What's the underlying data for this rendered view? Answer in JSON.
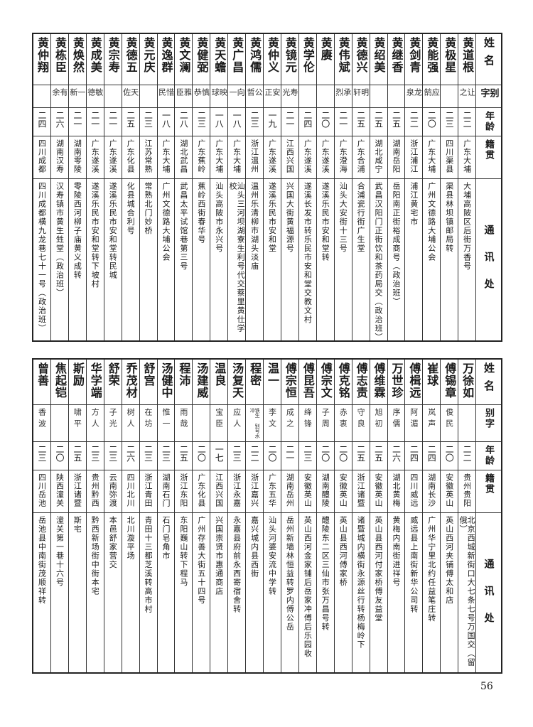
{
  "headers": {
    "name": "姓名",
    "alias": "别字",
    "age": "年龄",
    "origin": "籍贯",
    "address": "通讯处"
  },
  "tables": [
    {
      "rows": [
        {
          "name": "黄道根",
          "alias": "让之",
          "age": "二二",
          "origin": "广东大埔",
          "address": "大埔高陂区后街万香号"
        },
        {
          "name": "黄极星",
          "alias": "",
          "age": "二三",
          "origin": "四川渠县",
          "address": "渠县林坝镇邮局转"
        },
        {
          "name": "黄能强",
          "alias": "应鹄",
          "age": "二〇",
          "origin": "广东大埔",
          "address": "广州文德路大埔公会"
        },
        {
          "name": "黄剑青",
          "alias": "龙泉",
          "age": "二二",
          "origin": "浙江浦江",
          "address": "浦江黄宅市"
        },
        {
          "name": "黄继香",
          "alias": "",
          "age": "二五",
          "origin": "湖南岳阳",
          "address": "岳阳南正街裕成商号（政治班）"
        },
        {
          "name": "黄绍美",
          "alias": "",
          "age": "二五",
          "origin": "湖北咸宁",
          "address": "武昌汉阳门正街饮和茶药局交（政治班）"
        },
        {
          "name": "黄德兴",
          "alias": "明轩",
          "age": "二五",
          "origin": "广东合浦",
          "address": "合浦瓷行街广生堂"
        },
        {
          "name": "黄伟斌",
          "alias": "承烈",
          "age": "二一",
          "origin": "广东澄海",
          "address": "汕头大安街十三号"
        },
        {
          "name": "黄赓",
          "alias": "",
          "age": "二〇",
          "origin": "广东遂溪",
          "address": "遂溪乐民市安和堂转"
        },
        {
          "name": "黄学伦",
          "alias": "",
          "age": "二四",
          "origin": "广东遂溪",
          "address": "遂溪长发市转乐民市安和堂交教文村"
        },
        {
          "name": "黄镜元",
          "alias": "寿光",
          "age": "二一",
          "origin": "江西兴国",
          "address": "兴国大街黄福源号"
        },
        {
          "name": "黄仲义",
          "alias": "安正",
          "age": "一九",
          "origin": "广东遂溪",
          "address": "遂溪乐民市安和堂"
        },
        {
          "name": "黄鸿儒",
          "alias": "公哲",
          "age": "二三",
          "origin": "浙江温州",
          "address": "温州乐清柳市湖头淡庙"
        },
        {
          "name": "黄广昌",
          "alias": "向一",
          "age": "一八",
          "origin": "广东大埔",
          "address": "汕头三河坝湖寮生利号代交蔡里黄仕学校"
        },
        {
          "name": "黄天蟾",
          "alias": "映球",
          "age": "一八",
          "origin": "广东大埔",
          "address": "汕头高陂市永兴号"
        },
        {
          "name": "黄健弼",
          "alias": "慎恭",
          "age": "二三",
          "origin": "广东蕉岭",
          "address": "蕉岭西街春华号"
        },
        {
          "name": "黄文澜",
          "alias": "雅臣",
          "age": "二八",
          "origin": "湖北武昌",
          "address": "武昌太平试馆巷第三号"
        },
        {
          "name": "黄逸群",
          "alias": "惜民",
          "age": "一八",
          "origin": "广东大埔",
          "address": "广州文德路大埔公会"
        },
        {
          "name": "黄元庆",
          "alias": "",
          "age": "二三",
          "origin": "江苏常熟",
          "address": "常熟北门妙桥"
        },
        {
          "name": "黄德五",
          "alias": "天佐",
          "age": "二五",
          "origin": "广东化县",
          "address": "化县城合利号"
        },
        {
          "name": "黄宗寿",
          "alias": "",
          "age": "二一",
          "origin": "广东遂溪",
          "address": "遂溪乐民市安和堂转民城"
        },
        {
          "name": "黄成美",
          "alias": "敏德",
          "age": "二一",
          "origin": "广东遂溪",
          "address": "遂溪乐民市安和堂转下坡村"
        },
        {
          "name": "黄焕然",
          "alias": "一新",
          "age": "二一",
          "origin": "湖南零陵",
          "address": "零陵西河柳子庙黄义成转"
        },
        {
          "name": "黄栋臣",
          "alias": "有余",
          "age": "二六",
          "origin": "湖南汉寿",
          "address": "汉寿镇市黄生甡堂（政治班）"
        },
        {
          "name": "黄仲翔",
          "alias": "",
          "age": "二四",
          "origin": "四川成都",
          "address": "四川成都横九龙巷七十一号（政治班）"
        }
      ]
    },
    {
      "rows": [
        {
          "name": "万徐如",
          "alias": "",
          "age": "二二",
          "origin": "贵州贵阳",
          "address": "北京西城新街口大七条七号万国交（留俄）"
        },
        {
          "name": "傅锡章",
          "alias": "俊民",
          "age": "二〇",
          "origin": "安徽英山",
          "address": "英山西河夹铺傅太和店"
        },
        {
          "name": "崔球",
          "alias": "岚声",
          "age": "二四",
          "origin": "湖南长沙",
          "address": "广州华宁里北约任益笔庄转"
        },
        {
          "name": "傅楫远",
          "alias": "阿湄",
          "age": "二四",
          "origin": "四川威远",
          "address": "威远县上南街新华公司转"
        },
        {
          "name": "万世珍",
          "alias": "序儒",
          "age": "二六",
          "origin": "湖北黄梅",
          "address": "黄梅内南街进祥号"
        },
        {
          "name": "傅维霖",
          "alias": "旭初",
          "age": "二五",
          "origin": "安徽英山",
          "address": "英山县西河付家桥傅友益堂"
        },
        {
          "name": "傅志责",
          "alias": "守良",
          "age": "二五",
          "origin": "浙江诸暨",
          "address": "诸暨城内横街永源丝行转杨梅岭下"
        },
        {
          "name": "傅克铭",
          "alias": "赤衷",
          "age": "二〇",
          "origin": "安徽英山",
          "address": "英山县西河傅家桥"
        },
        {
          "name": "傅宗文",
          "alias": "子周",
          "age": "二〇",
          "origin": "湖南醴陵",
          "address": "醴陵东二区三仙市张万昌号转"
        },
        {
          "name": "傅昆吾",
          "alias": "绛锋",
          "age": "二三",
          "origin": "安徽英山",
          "address": "英山西河金家铺后岳家冲傅后乐园收"
        },
        {
          "name": "傅宗恒",
          "alias": "成之",
          "age": "二一",
          "origin": "湖南岳州",
          "address": "岳州新墙林恒益转罗内傅公岳"
        },
        {
          "name": "温一",
          "alias": "李文",
          "age": "二〇",
          "origin": "广东五华",
          "address": "汕头河婆安流中学转"
        },
        {
          "name": "程密",
          "alias": "铁生 别号水冲",
          "age": "二二",
          "origin": "浙江嘉兴",
          "address": "嘉兴城内县西街"
        },
        {
          "name": "汤复天",
          "alias": "应人",
          "age": "二三",
          "origin": "浙江永嘉",
          "address": "永嘉县府前永西寄宿舍转"
        },
        {
          "name": "温良",
          "alias": "宝臣",
          "age": "一七",
          "origin": "江西兴国",
          "address": "兴国崇贤市惠通商店"
        },
        {
          "name": "汤建威",
          "alias": "",
          "age": "二〇",
          "origin": "广东化县",
          "address": "广州存善大街五十四号"
        },
        {
          "name": "程沛",
          "alias": "雨哉",
          "age": "二五",
          "origin": "浙江东阳",
          "address": "东阳巍山转下程马"
        },
        {
          "name": "汤健中",
          "alias": "惟一",
          "age": "二三",
          "origin": "湖南石门",
          "address": "石门皂角市"
        },
        {
          "name": "舒宫",
          "alias": "在坊",
          "age": "二三",
          "origin": "浙江青田",
          "address": "青田十三都芝溪转高市村"
        },
        {
          "name": "乔茂材",
          "alias": "树人",
          "age": "二六",
          "origin": "四川北川",
          "address": "北川漩平场"
        },
        {
          "name": "舒荣",
          "alias": "子光",
          "age": "二三",
          "origin": "云南弥渡",
          "address": "本邑舒家营交"
        },
        {
          "name": "华学端",
          "alias": "方人",
          "age": "二三",
          "origin": "贵州黔西",
          "address": "黔西新场街中街本宅"
        },
        {
          "name": "斯励",
          "alias": "啸平",
          "age": "二五",
          "origin": "浙江诸暨",
          "address": "斯宅"
        },
        {
          "name": "焦起铠",
          "alias": "",
          "age": "二〇",
          "origin": "陕西潼关",
          "address": "潼关第一巷十六号"
        },
        {
          "name": "曾善",
          "alias": "香波",
          "age": "二三",
          "origin": "四川岳池",
          "address": "岳池县中南街茂顺祥转"
        }
      ]
    }
  ],
  "page_number": "56"
}
